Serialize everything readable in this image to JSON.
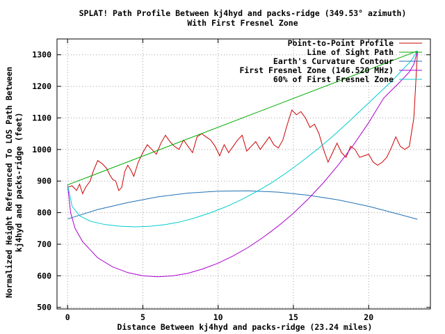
{
  "chart_data": {
    "type": "line",
    "title_line1": "SPLAT! Path Profile Between kj4hyd and packs-ridge (349.53° azimuth)",
    "title_line2": "With First Fresnel Zone",
    "xlabel": "Distance Between kj4hyd and packs-ridge (23.24 miles)",
    "ylabel_line1": "Normalized Height Referenced To LOS Path Between",
    "ylabel_line2": "kj4hyd and packs-ridge (feet)",
    "xlim": [
      -0.7,
      24.1
    ],
    "ylim": [
      495,
      1350
    ],
    "x_ticks": [
      0,
      5,
      10,
      15,
      20
    ],
    "y_ticks": [
      500,
      600,
      700,
      800,
      900,
      1000,
      1100,
      1200,
      1300
    ],
    "grid": true,
    "legend_position": "top-right",
    "series": [
      {
        "name": "Point-to-Point Profile",
        "color": "#cc0000",
        "points": [
          [
            0,
            880
          ],
          [
            0.3,
            885
          ],
          [
            0.6,
            870
          ],
          [
            0.8,
            890
          ],
          [
            1.0,
            860
          ],
          [
            1.2,
            880
          ],
          [
            1.5,
            900
          ],
          [
            1.7,
            930
          ],
          [
            2.0,
            965
          ],
          [
            2.3,
            955
          ],
          [
            2.6,
            940
          ],
          [
            2.8,
            920
          ],
          [
            3.0,
            905
          ],
          [
            3.2,
            900
          ],
          [
            3.4,
            870
          ],
          [
            3.6,
            880
          ],
          [
            3.8,
            930
          ],
          [
            4.0,
            950
          ],
          [
            4.2,
            935
          ],
          [
            4.4,
            915
          ],
          [
            4.7,
            960
          ],
          [
            5.0,
            990
          ],
          [
            5.3,
            1015
          ],
          [
            5.6,
            1000
          ],
          [
            5.9,
            985
          ],
          [
            6.2,
            1020
          ],
          [
            6.5,
            1045
          ],
          [
            6.8,
            1025
          ],
          [
            7.1,
            1010
          ],
          [
            7.4,
            1000
          ],
          [
            7.7,
            1030
          ],
          [
            8.0,
            1010
          ],
          [
            8.3,
            990
          ],
          [
            8.6,
            1040
          ],
          [
            8.9,
            1050
          ],
          [
            9.2,
            1040
          ],
          [
            9.5,
            1030
          ],
          [
            9.8,
            1010
          ],
          [
            10.1,
            980
          ],
          [
            10.4,
            1015
          ],
          [
            10.7,
            990
          ],
          [
            11.0,
            1010
          ],
          [
            11.3,
            1030
          ],
          [
            11.6,
            1045
          ],
          [
            11.9,
            995
          ],
          [
            12.2,
            1010
          ],
          [
            12.5,
            1025
          ],
          [
            12.8,
            1000
          ],
          [
            13.1,
            1020
          ],
          [
            13.4,
            1040
          ],
          [
            13.7,
            1015
          ],
          [
            14.0,
            1005
          ],
          [
            14.3,
            1030
          ],
          [
            14.6,
            1080
          ],
          [
            14.9,
            1125
          ],
          [
            15.2,
            1110
          ],
          [
            15.5,
            1120
          ],
          [
            15.8,
            1100
          ],
          [
            16.1,
            1070
          ],
          [
            16.4,
            1080
          ],
          [
            16.7,
            1050
          ],
          [
            17.0,
            1000
          ],
          [
            17.3,
            960
          ],
          [
            17.6,
            990
          ],
          [
            17.9,
            1020
          ],
          [
            18.2,
            990
          ],
          [
            18.5,
            975
          ],
          [
            18.8,
            1010
          ],
          [
            19.1,
            1000
          ],
          [
            19.4,
            975
          ],
          [
            19.7,
            980
          ],
          [
            20.0,
            985
          ],
          [
            20.3,
            960
          ],
          [
            20.6,
            950
          ],
          [
            20.9,
            960
          ],
          [
            21.2,
            975
          ],
          [
            21.5,
            1005
          ],
          [
            21.8,
            1040
          ],
          [
            22.1,
            1010
          ],
          [
            22.4,
            1000
          ],
          [
            22.7,
            1010
          ],
          [
            23.0,
            1100
          ],
          [
            23.24,
            1310
          ]
        ]
      },
      {
        "name": "Line of Sight Path",
        "color": "#00aa00",
        "points": [
          [
            0,
            888
          ],
          [
            23.24,
            1312
          ]
        ]
      },
      {
        "name": "Earth's Curvature Contour",
        "color": "#1f6fb5",
        "points": [
          [
            0,
            780
          ],
          [
            2,
            810
          ],
          [
            4,
            832
          ],
          [
            6,
            850
          ],
          [
            8,
            862
          ],
          [
            10,
            868
          ],
          [
            12,
            869
          ],
          [
            14,
            865
          ],
          [
            16,
            855
          ],
          [
            18,
            840
          ],
          [
            20,
            820
          ],
          [
            22,
            795
          ],
          [
            23.24,
            779
          ]
        ]
      },
      {
        "name": "First Fresnel Zone (146.520 MHz)",
        "color": "#aa00cc",
        "points": [
          [
            0,
            888
          ],
          [
            0.2,
            800
          ],
          [
            0.5,
            750
          ],
          [
            1,
            708
          ],
          [
            2,
            657
          ],
          [
            3,
            628
          ],
          [
            4,
            610
          ],
          [
            5,
            600
          ],
          [
            6,
            597
          ],
          [
            7,
            600
          ],
          [
            8,
            608
          ],
          [
            9,
            622
          ],
          [
            10,
            640
          ],
          [
            11,
            663
          ],
          [
            12,
            690
          ],
          [
            13,
            722
          ],
          [
            14,
            758
          ],
          [
            15,
            798
          ],
          [
            16,
            844
          ],
          [
            17,
            895
          ],
          [
            18,
            952
          ],
          [
            19,
            1015
          ],
          [
            20,
            1085
          ],
          [
            21,
            1163
          ],
          [
            22,
            1210
          ],
          [
            22.7,
            1245
          ],
          [
            23.0,
            1270
          ],
          [
            23.24,
            1312
          ]
        ]
      },
      {
        "name": "60% of First Fresnel Zone",
        "color": "#00cccc",
        "points": [
          [
            0,
            888
          ],
          [
            0.3,
            820
          ],
          [
            0.8,
            790
          ],
          [
            1.5,
            773
          ],
          [
            2.5,
            762
          ],
          [
            3.5,
            757
          ],
          [
            4.5,
            755
          ],
          [
            5.5,
            757
          ],
          [
            6.5,
            762
          ],
          [
            7.5,
            771
          ],
          [
            8.5,
            784
          ],
          [
            9.5,
            800
          ],
          [
            10.5,
            818
          ],
          [
            11.5,
            840
          ],
          [
            12.5,
            865
          ],
          [
            13.5,
            893
          ],
          [
            14.5,
            925
          ],
          [
            15.5,
            960
          ],
          [
            16.5,
            997
          ],
          [
            17.5,
            1037
          ],
          [
            18.5,
            1080
          ],
          [
            19.5,
            1125
          ],
          [
            20.5,
            1170
          ],
          [
            21.5,
            1215
          ],
          [
            22.3,
            1255
          ],
          [
            22.8,
            1280
          ],
          [
            23.24,
            1312
          ]
        ]
      }
    ]
  }
}
